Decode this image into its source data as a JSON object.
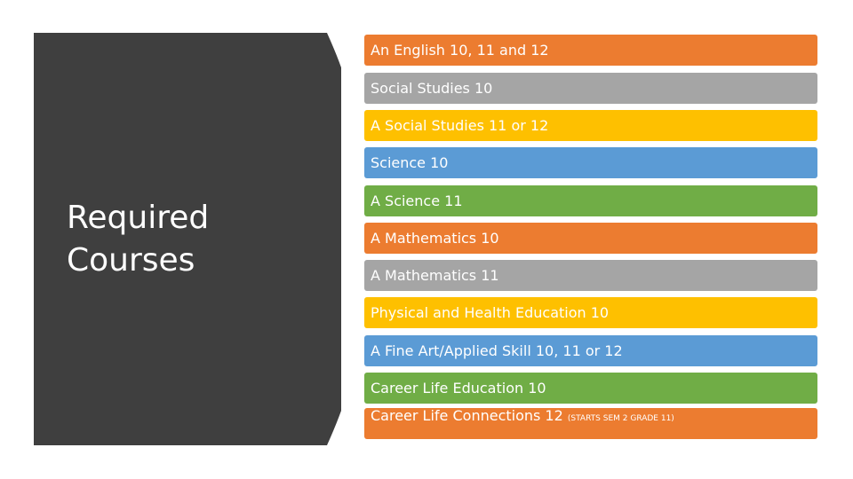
{
  "title": {
    "line1": "Required",
    "line2": "Courses"
  },
  "colors": {
    "panel": "#3f3f3f",
    "orange": "#ec7c30",
    "gray": "#a5a5a5",
    "gold": "#fec000",
    "blue": "#5b9bd5",
    "green": "#70ad46"
  },
  "courses": [
    {
      "label": "An English 10, 11 and 12",
      "color": "orange"
    },
    {
      "label": "Social Studies 10",
      "color": "gray"
    },
    {
      "label": "A Social Studies 11 or 12",
      "color": "gold"
    },
    {
      "label": "Science 10",
      "color": "blue"
    },
    {
      "label": "A Science 11",
      "color": "green"
    },
    {
      "label": "A Mathematics 10",
      "color": "orange"
    },
    {
      "label": "A Mathematics 11",
      "color": "gray"
    },
    {
      "label": "Physical and Health Education 10",
      "color": "gold"
    },
    {
      "label": "A Fine Art/Applied Skill 10, 11 or 12",
      "color": "blue"
    },
    {
      "label": "Career Life Education 10",
      "color": "green"
    },
    {
      "label": "Career Life Connections 12",
      "note": "(STARTS SEM 2 GRADE 11)",
      "color": "orange"
    }
  ]
}
